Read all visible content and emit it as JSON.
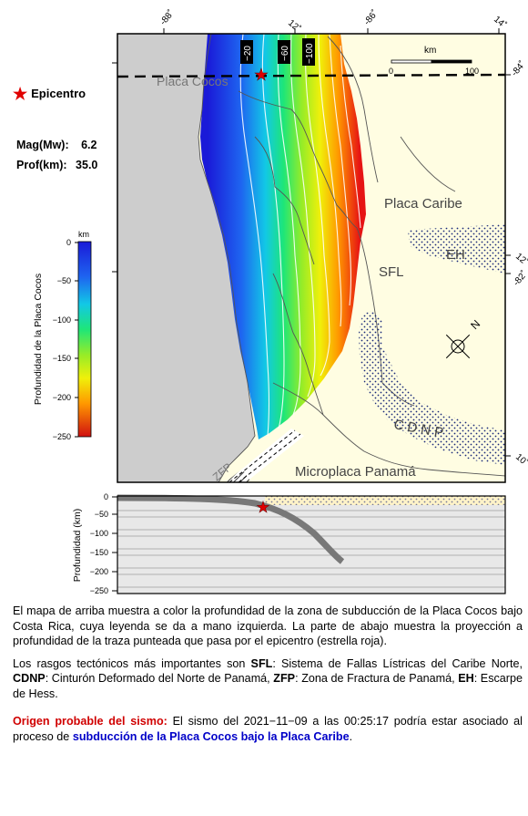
{
  "legend": {
    "epicenter_label": "Epicentro",
    "mag_label": "Mag(Mw):",
    "mag_value": "6.2",
    "depth_label": "Prof(km):",
    "depth_value": "35.0"
  },
  "colorbar": {
    "unit": "km",
    "title": "Profundidad de la Placa Cocos",
    "ticks": [
      "0",
      "−50",
      "−100",
      "−150",
      "−200",
      "−250"
    ]
  },
  "map": {
    "lon_labels": [
      "-88˚",
      "-86˚"
    ],
    "lat_labels_top": [
      "12˚",
      "14˚"
    ],
    "right_labels": [
      "-84˚",
      "12˚",
      "-82˚",
      "10˚"
    ],
    "contour_labels": [
      "−20",
      "−60",
      "−100"
    ],
    "scale_unit": "km",
    "scale_start": "0",
    "scale_end": "100",
    "north_label": "N",
    "labels": {
      "cocos": "Placa Cocos",
      "caribe": "Placa Caribe",
      "eh": "EH",
      "sfl": "SFL",
      "cdnp": "C D N P",
      "zfp": "ZFP",
      "panama": "Microplaca Panamá"
    }
  },
  "profile": {
    "ylabel": "Profundidad (km)",
    "ticks": [
      "0",
      "−50",
      "−100",
      "−150",
      "−200",
      "−250"
    ]
  },
  "caption": {
    "p1": "El mapa de arriba muestra a color la profundidad de la zona de subducción de la Placa Cocos bajo Costa Rica, cuya leyenda se da a mano izquierda.  La parte de abajo muestra la proyección a profundidad de la traza punteada que pasa por el epicentro (estrella roja).",
    "p2_intro": "Los rasgos tectónicos más importantes son ",
    "sfl_abbr": "SFL",
    "sfl_text": ": Sistema de Fallas Lístricas del Caribe Norte, ",
    "cdnp_abbr": "CDNP",
    "cdnp_text": ": Cinturón Deformado del Norte de Panamá, ",
    "zfp_abbr": "ZFP",
    "zfp_text": ": Zona de Fractura de Panamá, ",
    "eh_abbr": "EH",
    "eh_text": ": Escarpe de Hess.",
    "origin_label": "Origen probable del sismo:",
    "origin_text": " El sismo del 2021−11−09 a las 00:25:17 podría estar asociado al proceso de ",
    "origin_process": "subducción de la Placa Cocos bajo la Placa Caribe",
    "origin_end": "."
  },
  "colors": {
    "ocean": "#cdcdcd",
    "land": "#fffde2",
    "epicenter": "#e00000",
    "slab_profile": "#787878"
  }
}
